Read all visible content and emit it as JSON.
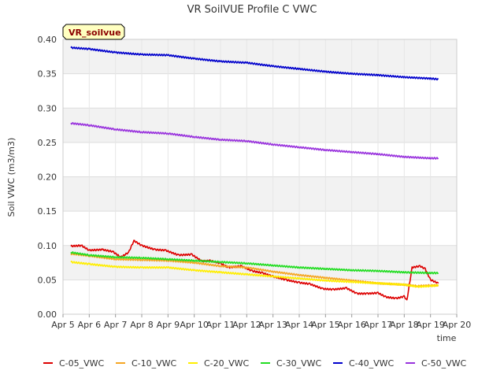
{
  "chart_data": {
    "type": "line",
    "title": "VR SoilVUE Profile C VWC",
    "xlabel": "time",
    "ylabel": "Soil VWC (m3/m3)",
    "badge": "VR_soilvue",
    "ylim": [
      0.0,
      0.4
    ],
    "yticks": [
      "0.00",
      "0.05",
      "0.10",
      "0.15",
      "0.20",
      "0.25",
      "0.30",
      "0.35",
      "0.40"
    ],
    "xlim": [
      5,
      20
    ],
    "xtick_labels": [
      "Apr 5",
      "Apr 6",
      "Apr 7",
      "Apr 8",
      "Apr 9",
      "Apr 10",
      "Apr 11",
      "Apr 12",
      "Apr 13",
      "Apr 14",
      "Apr 15",
      "Apr 16",
      "Apr 17",
      "Apr 18",
      "Apr 19",
      "Apr 20"
    ],
    "xtick_values": [
      5,
      6,
      7,
      8,
      9,
      10,
      11,
      12,
      13,
      14,
      15,
      16,
      17,
      18,
      19,
      20
    ],
    "grid": true,
    "legend_position": "bottom",
    "series": [
      {
        "name": "C-05_VWC",
        "color": "#dd0000",
        "x": [
          5.3,
          5.7,
          6.0,
          6.5,
          6.9,
          7.2,
          7.5,
          7.7,
          8.0,
          8.5,
          8.9,
          9.4,
          9.9,
          10.3,
          10.6,
          11.0,
          11.3,
          11.8,
          12.2,
          12.6,
          13.0,
          13.5,
          14.0,
          14.4,
          14.9,
          15.3,
          15.8,
          16.2,
          16.6,
          17.0,
          17.3,
          17.7,
          18.0,
          18.1,
          18.3,
          18.6,
          18.8,
          19.0,
          19.3
        ],
        "y": [
          0.099,
          0.1,
          0.093,
          0.094,
          0.091,
          0.083,
          0.09,
          0.107,
          0.1,
          0.094,
          0.093,
          0.086,
          0.087,
          0.077,
          0.078,
          0.074,
          0.068,
          0.07,
          0.063,
          0.06,
          0.055,
          0.05,
          0.046,
          0.044,
          0.037,
          0.036,
          0.038,
          0.03,
          0.03,
          0.031,
          0.025,
          0.023,
          0.026,
          0.02,
          0.068,
          0.07,
          0.066,
          0.05,
          0.045
        ]
      },
      {
        "name": "C-10_VWC",
        "color": "#f5a623",
        "x": [
          5.3,
          6.0,
          7.0,
          8.0,
          9.0,
          10.0,
          11.0,
          12.0,
          13.0,
          14.0,
          15.0,
          16.0,
          17.0,
          18.0,
          18.5,
          19.0,
          19.3
        ],
        "y": [
          0.088,
          0.085,
          0.08,
          0.079,
          0.078,
          0.075,
          0.07,
          0.068,
          0.062,
          0.057,
          0.053,
          0.049,
          0.045,
          0.043,
          0.041,
          0.042,
          0.042
        ]
      },
      {
        "name": "C-20_VWC",
        "color": "#ffee00",
        "x": [
          5.3,
          6.0,
          7.0,
          8.0,
          9.0,
          10.0,
          11.0,
          12.0,
          13.0,
          14.0,
          15.0,
          16.0,
          17.0,
          18.0,
          18.5,
          19.0,
          19.3
        ],
        "y": [
          0.076,
          0.073,
          0.069,
          0.068,
          0.068,
          0.064,
          0.061,
          0.058,
          0.055,
          0.052,
          0.049,
          0.047,
          0.045,
          0.043,
          0.04,
          0.041,
          0.042
        ]
      },
      {
        "name": "C-30_VWC",
        "color": "#22dd22",
        "x": [
          5.3,
          6.0,
          7.0,
          8.0,
          9.0,
          10.0,
          11.0,
          12.0,
          13.0,
          14.0,
          15.0,
          16.0,
          17.0,
          18.0,
          19.0,
          19.3
        ],
        "y": [
          0.09,
          0.086,
          0.083,
          0.082,
          0.08,
          0.078,
          0.076,
          0.074,
          0.071,
          0.068,
          0.066,
          0.064,
          0.063,
          0.061,
          0.06,
          0.06
        ]
      },
      {
        "name": "C-40_VWC",
        "color": "#0000cc",
        "x": [
          5.3,
          6.0,
          7.0,
          8.0,
          9.0,
          10.0,
          11.0,
          12.0,
          13.0,
          14.0,
          15.0,
          16.0,
          17.0,
          18.0,
          19.0,
          19.3
        ],
        "y": [
          0.388,
          0.386,
          0.381,
          0.378,
          0.377,
          0.372,
          0.368,
          0.366,
          0.361,
          0.357,
          0.353,
          0.35,
          0.348,
          0.345,
          0.343,
          0.342
        ]
      },
      {
        "name": "C-50_VWC",
        "color": "#9933dd",
        "x": [
          5.3,
          6.0,
          7.0,
          8.0,
          9.0,
          10.0,
          11.0,
          12.0,
          13.0,
          14.0,
          15.0,
          16.0,
          17.0,
          18.0,
          19.0,
          19.3
        ],
        "y": [
          0.278,
          0.275,
          0.269,
          0.265,
          0.263,
          0.258,
          0.254,
          0.252,
          0.247,
          0.243,
          0.239,
          0.236,
          0.233,
          0.229,
          0.227,
          0.227
        ]
      }
    ]
  }
}
